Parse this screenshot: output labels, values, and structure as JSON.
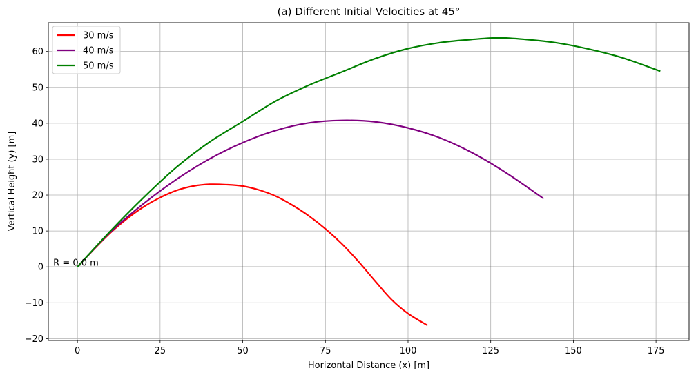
{
  "chart_data": {
    "type": "line",
    "title": "(a) Different Initial Velocities at 45°",
    "xlabel": "Horizontal Distance (x) [m]",
    "ylabel": "Vertical Height (y) [m]",
    "xlim": [
      -8.8,
      185
    ],
    "ylim": [
      -20.5,
      68
    ],
    "xticks": [
      0,
      25,
      50,
      75,
      100,
      125,
      150,
      175
    ],
    "xtick_labels": [
      "0",
      "25",
      "50",
      "75",
      "100",
      "125",
      "150",
      "175"
    ],
    "yticks": [
      -20,
      -10,
      0,
      10,
      20,
      30,
      40,
      50,
      60
    ],
    "ytick_labels": [
      "−20",
      "−10",
      "0",
      "10",
      "20",
      "30",
      "40",
      "50",
      "60"
    ],
    "grid": true,
    "legend_position": "top-left",
    "hline_y": 0,
    "series": [
      {
        "name": "30 m/s",
        "color": "#ff0000",
        "x": [
          0,
          5,
          10,
          15,
          20,
          25,
          30,
          35,
          40,
          45,
          50,
          55,
          60,
          65,
          70,
          75,
          80,
          85,
          90,
          95,
          100,
          105.9
        ],
        "y": [
          0,
          4.9,
          9.5,
          13.4,
          16.7,
          19.3,
          21.3,
          22.5,
          23.0,
          22.9,
          22.5,
          21.4,
          19.7,
          17.2,
          14.2,
          10.6,
          6.4,
          1.5,
          -3.9,
          -9.1,
          -13.0,
          -16.3
        ]
      },
      {
        "name": "40 m/s",
        "color": "#800080",
        "x": [
          0,
          10,
          20,
          30,
          40,
          50,
          60,
          70,
          80,
          90,
          100,
          110,
          120,
          130,
          141
        ],
        "y": [
          0,
          9.7,
          17.6,
          24.4,
          30.1,
          34.6,
          38.0,
          40.1,
          40.8,
          40.4,
          38.7,
          35.8,
          31.5,
          26.0,
          19.0
        ]
      },
      {
        "name": "50 m/s",
        "color": "#008000",
        "x": [
          0,
          10,
          20,
          30,
          40,
          50,
          60,
          70,
          80,
          90,
          100,
          110,
          120,
          127.5,
          135,
          145,
          155,
          165,
          176.3
        ],
        "y": [
          0,
          10.0,
          19.3,
          27.8,
          34.8,
          40.5,
          46.2,
          50.6,
          54.3,
          58.0,
          60.8,
          62.5,
          63.4,
          63.8,
          63.4,
          62.4,
          60.6,
          58.2,
          54.5
        ]
      }
    ],
    "annotations": [
      {
        "text": "R = 0.0 m",
        "x": -7.3,
        "y": 0.3
      }
    ]
  }
}
